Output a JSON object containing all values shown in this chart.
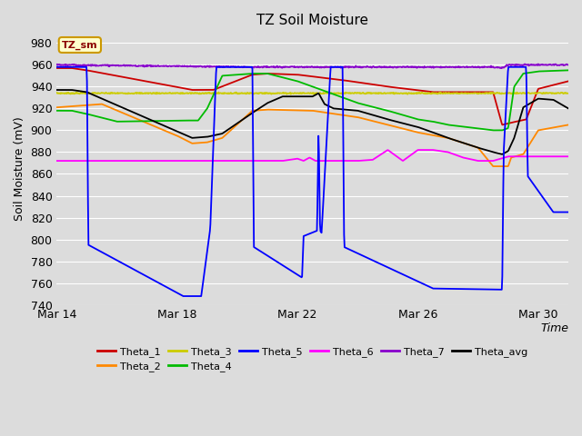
{
  "title": "TZ Soil Moisture",
  "ylabel": "Soil Moisture (mV)",
  "ylim": [
    740,
    990
  ],
  "yticks": [
    740,
    760,
    780,
    800,
    820,
    840,
    860,
    880,
    900,
    920,
    940,
    960,
    980
  ],
  "xtick_positions": [
    0,
    4,
    8,
    12,
    16
  ],
  "xtick_labels": [
    "Mar 14",
    "Mar 18",
    "Mar 22",
    "Mar 26",
    "Mar 30"
  ],
  "xlim": [
    0,
    17
  ],
  "bg_color": "#dcdcdc",
  "fig_bg": "#dcdcdc",
  "grid_color": "#ffffff",
  "series_colors": {
    "Theta_1": "#cc0000",
    "Theta_2": "#ff8800",
    "Theta_3": "#cccc00",
    "Theta_4": "#00bb00",
    "Theta_5": "#0000ff",
    "Theta_6": "#ff00ff",
    "Theta_7": "#8800cc",
    "Theta_avg": "#000000"
  },
  "legend_label": "TZ_sm",
  "legend_bbox_facecolor": "#ffffcc",
  "legend_bbox_edgecolor": "#cc9900",
  "legend_text_color": "#8B0000"
}
